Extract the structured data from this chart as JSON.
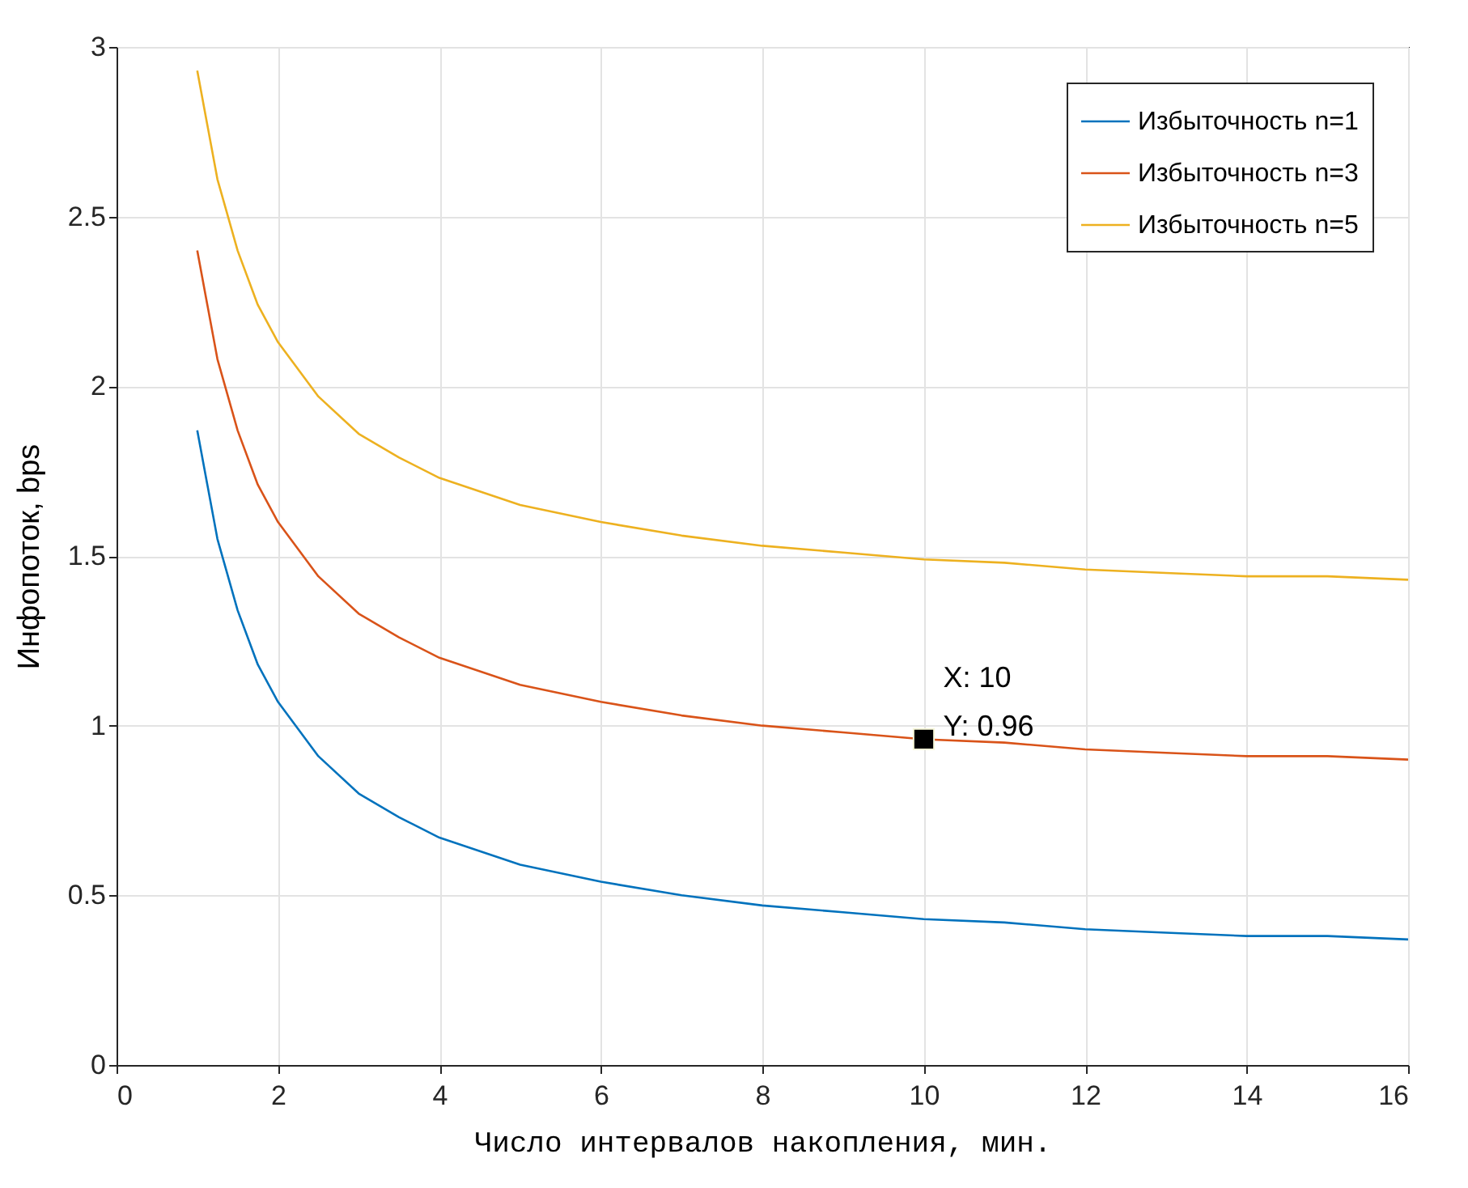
{
  "chart_data": {
    "type": "line",
    "xlabel": "Число интервалов накопления, мин.",
    "ylabel": "Инфопоток, bps",
    "x": [
      1,
      1.25,
      1.5,
      1.75,
      2,
      2.5,
      3,
      3.5,
      4,
      5,
      6,
      7,
      8,
      9,
      10,
      11,
      12,
      13,
      14,
      15,
      16
    ],
    "series": [
      {
        "name": "Избыточность n=1",
        "color": "#0072bd",
        "values": [
          1.87,
          1.55,
          1.34,
          1.18,
          1.07,
          0.91,
          0.8,
          0.73,
          0.67,
          0.59,
          0.54,
          0.5,
          0.47,
          0.45,
          0.43,
          0.42,
          0.4,
          0.39,
          0.38,
          0.38,
          0.37
        ]
      },
      {
        "name": "Избыточность n=3",
        "color": "#d95319",
        "values": [
          2.4,
          2.08,
          1.87,
          1.71,
          1.6,
          1.44,
          1.33,
          1.26,
          1.2,
          1.12,
          1.07,
          1.03,
          1.0,
          0.98,
          0.96,
          0.95,
          0.93,
          0.92,
          0.91,
          0.91,
          0.9
        ]
      },
      {
        "name": "Избыточность n=5",
        "color": "#edb120",
        "values": [
          2.93,
          2.61,
          2.4,
          2.24,
          2.13,
          1.97,
          1.86,
          1.79,
          1.73,
          1.65,
          1.6,
          1.56,
          1.53,
          1.51,
          1.49,
          1.48,
          1.46,
          1.45,
          1.44,
          1.44,
          1.43
        ]
      },
      {
        "type": "scatter",
        "marker": "square",
        "color": "#000000",
        "x": [
          10
        ],
        "values": [
          0.96
        ]
      }
    ],
    "annotations": [
      {
        "text": "X: 10\nY: 0.96",
        "x": 10,
        "y": 0.96
      }
    ],
    "xlim": [
      0,
      16
    ],
    "xticks": [
      0,
      2,
      4,
      6,
      8,
      10,
      12,
      14,
      16
    ],
    "ylim": [
      0,
      3
    ],
    "yticks": [
      0,
      0.5,
      1,
      1.5,
      2,
      2.5,
      3
    ],
    "grid": true,
    "legend": "top right"
  }
}
